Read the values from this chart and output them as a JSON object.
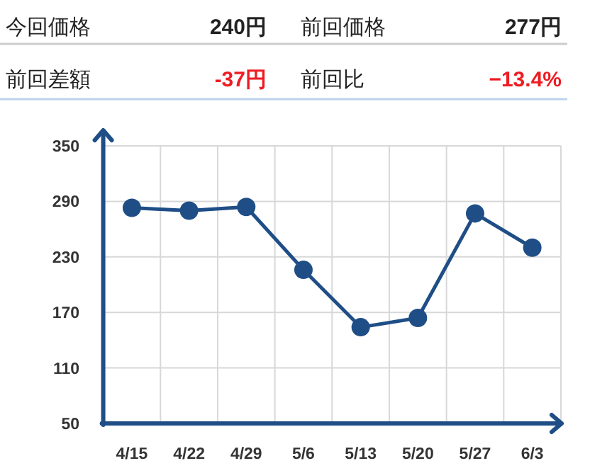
{
  "chart_data": [
    {
      "type": "other",
      "annotations": [
        "今回価格",
        "240円",
        "前回価格",
        "277円",
        "前回差額",
        "-37円",
        "前回比",
        "−13.4%"
      ]
    },
    {
      "type": "line",
      "categories": [
        "4/15",
        "4/22",
        "4/29",
        "5/6",
        "5/13",
        "5/20",
        "5/27",
        "6/3"
      ],
      "series": [
        {
          "color": "#1f4e87",
          "values": [
            283,
            280,
            284,
            216,
            154,
            164,
            277,
            240
          ]
        }
      ],
      "ylim": [
        50,
        350
      ],
      "yticks": [
        50,
        110,
        170,
        230,
        290,
        350
      ],
      "grid": true,
      "marker": "circle",
      "line_style": "solid"
    }
  ]
}
